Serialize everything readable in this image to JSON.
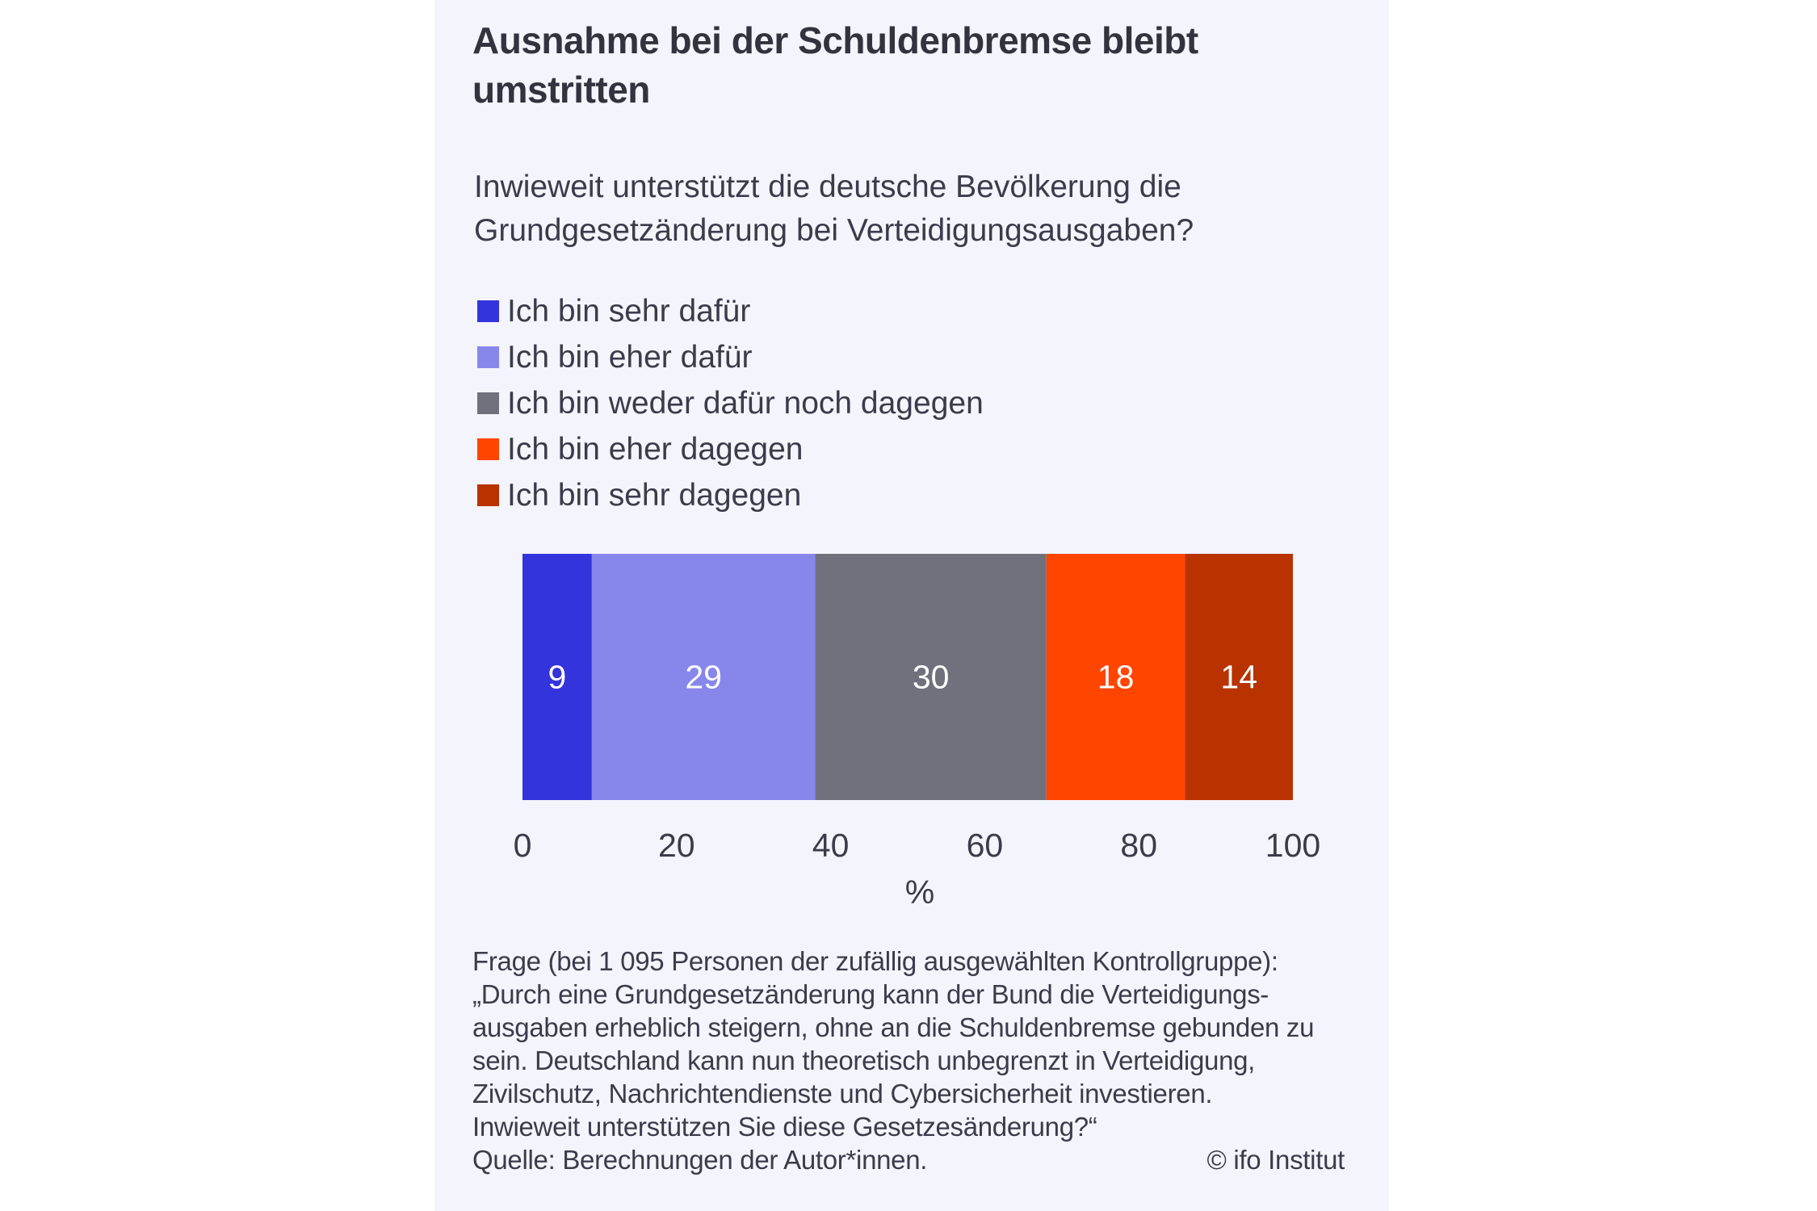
{
  "chart_data": {
    "type": "bar",
    "orientation": "horizontal-stacked",
    "title": "Ausnahme bei der Schuldenbremse bleibt umstritten",
    "subtitle": "Inwieweit unterstützt die deutsche Bevölkerung die Grundgesetzänderung bei Verteidigungsausgaben?",
    "xlabel": "%",
    "xlim": [
      0,
      100
    ],
    "xticks": [
      "0",
      "20",
      "40",
      "60",
      "80",
      "100"
    ],
    "legend_placement": "top-left",
    "grid": false,
    "series": [
      {
        "name": "Ich bin sehr dafür",
        "value": 9,
        "label": "9",
        "color": "#3434dd"
      },
      {
        "name": "Ich bin eher dafür",
        "value": 29,
        "label": "29",
        "color": "#8787eb"
      },
      {
        "name": "Ich bin weder dafür noch dagegen",
        "value": 30,
        "label": "30",
        "color": "#71717e"
      },
      {
        "name": "Ich bin eher dagegen",
        "value": 18,
        "label": "18",
        "color": "#ff4500"
      },
      {
        "name": "Ich bin sehr dagegen",
        "value": 14,
        "label": "14",
        "color": "#b83300"
      }
    ]
  },
  "footnote": {
    "lines": [
      "Frage (bei 1 095 Personen der zufällig ausgewählten Kontrollgruppe):",
      "„Durch eine Grundgesetzänderung kann der Bund die Verteidigungs-",
      "ausgaben erheblich steigern, ohne an die Schuldenbremse gebunden zu",
      "sein. Deutschland kann nun theoretisch unbegrenzt in Verteidigung,",
      "Zivilschutz, Nachrichtendienste und Cybersicherheit investieren.",
      "Inwieweit unterstützen Sie diese Gesetzesänderung?“"
    ],
    "source": "Quelle: Berechnungen der Autor*innen.",
    "copyright": "© ifo Institut"
  }
}
